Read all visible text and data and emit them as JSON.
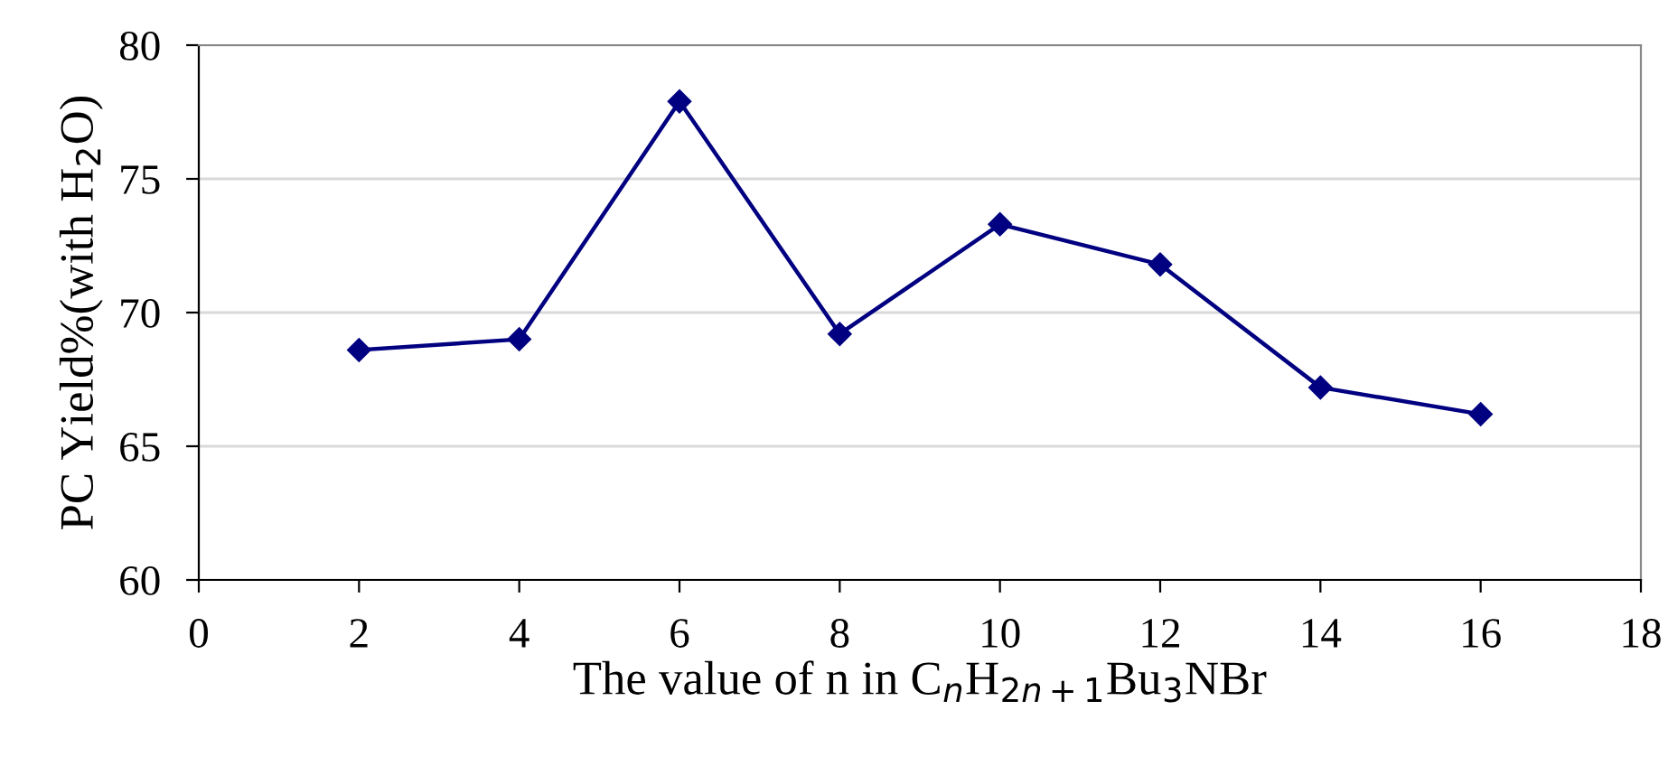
{
  "chart_data": {
    "type": "line",
    "xlabel": "The value of n in C$_{n}$H$_{2n+1}$Bu$_{3}$NBr",
    "ylabel": "PC Yield%(with H$_{2}$O)",
    "x": [
      2,
      4,
      6,
      8,
      10,
      12,
      14,
      16
    ],
    "series": [
      {
        "color": "#000080",
        "values": [
          68.6,
          69.0,
          77.9,
          69.2,
          73.3,
          71.8,
          67.2,
          66.2
        ]
      }
    ],
    "xlim": [
      0,
      18
    ],
    "xticks": [
      0,
      2,
      4,
      6,
      8,
      10,
      12,
      14,
      16,
      18
    ],
    "ylim": [
      60,
      80
    ],
    "yticks": [
      60,
      65,
      70,
      75,
      80
    ],
    "grid": "y",
    "marker": "diamond",
    "line_style": "solid",
    "legend": false
  }
}
